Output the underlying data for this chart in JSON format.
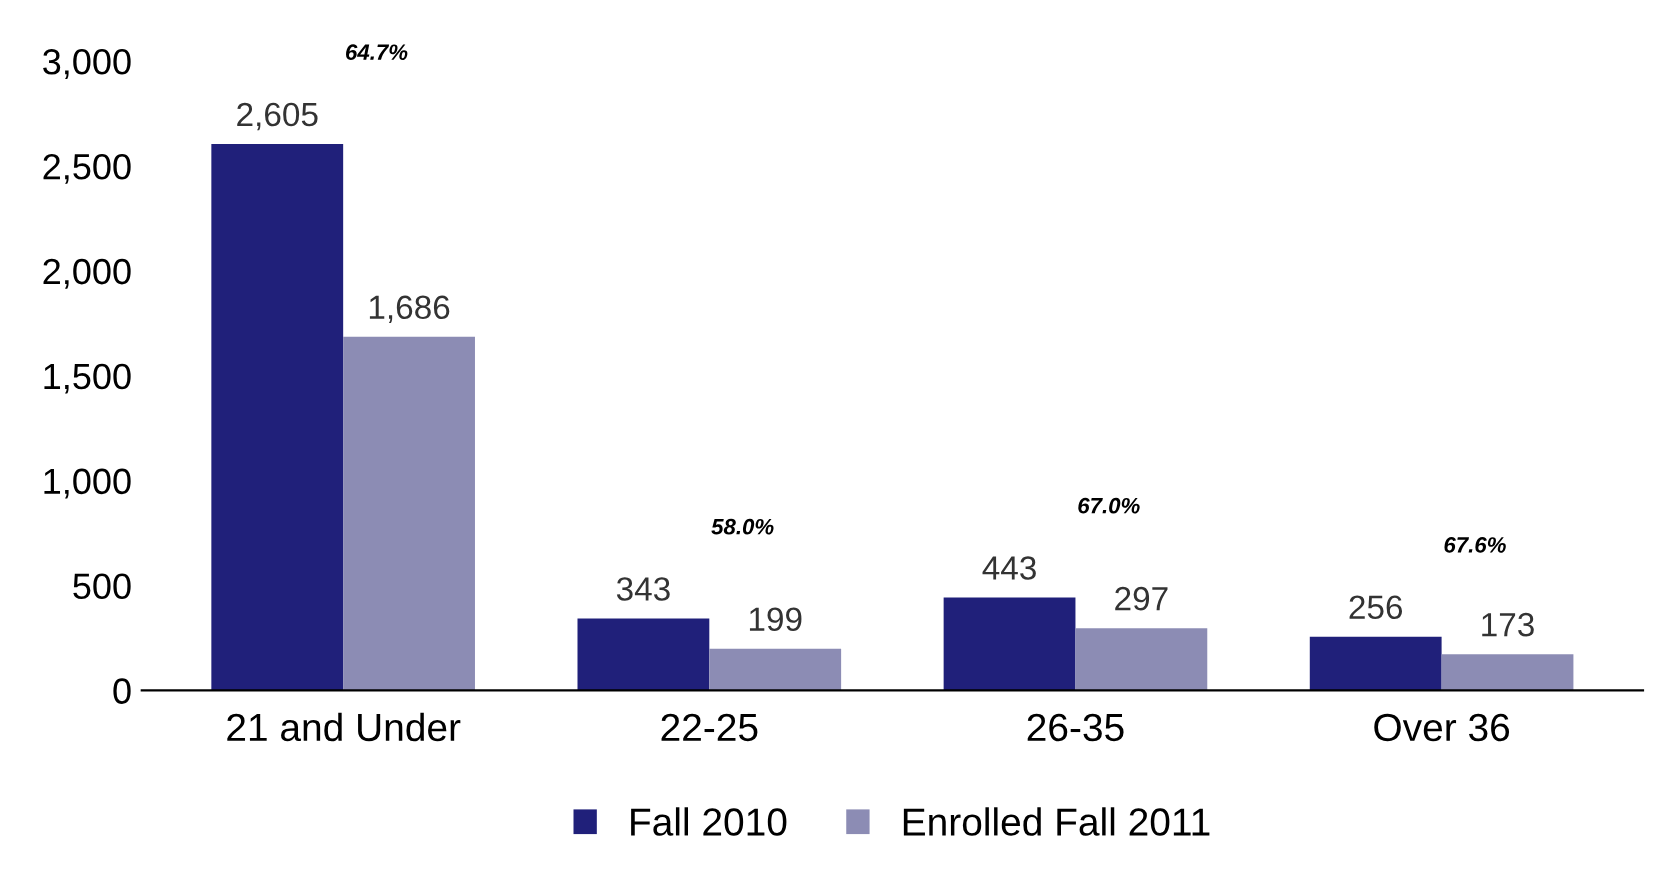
{
  "chart_data": {
    "type": "bar",
    "categories": [
      "21 and Under",
      "22-25",
      "26-35",
      "Over 36"
    ],
    "series": [
      {
        "name": "Fall 2010",
        "color": "#20207a",
        "values": [
          2605,
          343,
          443,
          256
        ],
        "value_labels": [
          "2,605",
          "343",
          "443",
          "256"
        ]
      },
      {
        "name": "Enrolled Fall 2011",
        "color": "#8c8cb4",
        "values": [
          1686,
          199,
          297,
          173
        ],
        "value_labels": [
          "1,686",
          "199",
          "297",
          "173"
        ]
      }
    ],
    "ylim": [
      0,
      3000
    ],
    "yticks": [
      0,
      500,
      {
        "value": 1000,
        "label": "1,000"
      },
      {
        "value": 1500,
        "label": "1,500"
      },
      {
        "value": 2000,
        "label": "2,000"
      },
      {
        "value": 2500,
        "label": "2,500"
      },
      {
        "value": 3000,
        "label": "3,000"
      }
    ],
    "grid": false,
    "legend": "bottom",
    "annotations": [
      "64.7%",
      "58.0%",
      "67.0%",
      "67.6%"
    ]
  }
}
